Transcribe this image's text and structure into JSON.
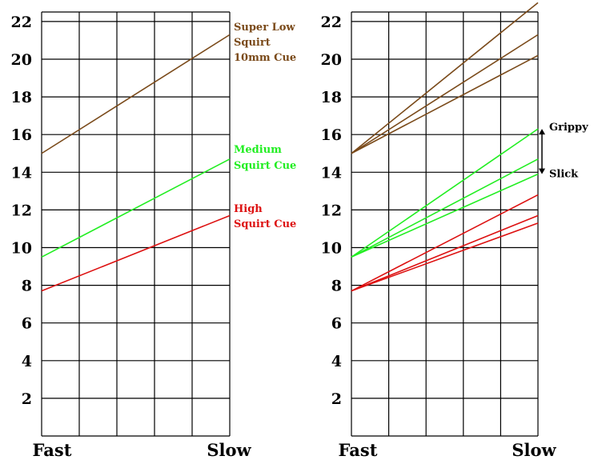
{
  "chart_data": [
    {
      "type": "line",
      "categories": [
        "Fast",
        "Slow"
      ],
      "ylim": [
        0,
        23
      ],
      "y_ticks": [
        "2",
        "4",
        "6",
        "8",
        "10",
        "12",
        "14",
        "16",
        "18",
        "20",
        "22"
      ],
      "grid": true,
      "series": [
        {
          "name": "Super Low Squirt 10mm Cue",
          "label_lines": [
            "Super Low",
            "Squirt",
            "10mm Cue"
          ],
          "color": "#7a4a1a",
          "values": [
            15.0,
            21.3
          ]
        },
        {
          "name": "Medium Squirt Cue",
          "label_lines": [
            "Medium",
            "Squirt Cue"
          ],
          "color": "#22ee22",
          "values": [
            9.5,
            14.7
          ]
        },
        {
          "name": "High Squirt Cue",
          "label_lines": [
            "High",
            "Squirt Cue"
          ],
          "color": "#dd1111",
          "values": [
            7.7,
            11.7
          ]
        }
      ]
    },
    {
      "type": "line",
      "categories": [
        "Fast",
        "Slow"
      ],
      "ylim": [
        0,
        23
      ],
      "y_ticks": [
        "2",
        "4",
        "6",
        "8",
        "10",
        "12",
        "14",
        "16",
        "18",
        "20",
        "22"
      ],
      "grid": true,
      "annotations": [
        "Grippy",
        "Slick"
      ],
      "series": [
        {
          "color": "#7a4a1a",
          "values": [
            15.0,
            23.0
          ]
        },
        {
          "color": "#7a4a1a",
          "values": [
            15.0,
            21.3
          ]
        },
        {
          "color": "#7a4a1a",
          "values": [
            15.0,
            20.2
          ]
        },
        {
          "color": "#22ee22",
          "values": [
            9.5,
            16.3
          ]
        },
        {
          "color": "#22ee22",
          "values": [
            9.5,
            14.7
          ]
        },
        {
          "color": "#22ee22",
          "values": [
            9.5,
            13.9
          ]
        },
        {
          "color": "#dd1111",
          "values": [
            7.7,
            12.8
          ]
        },
        {
          "color": "#dd1111",
          "values": [
            7.7,
            11.7
          ]
        },
        {
          "color": "#dd1111",
          "values": [
            7.7,
            11.3
          ]
        }
      ]
    }
  ]
}
